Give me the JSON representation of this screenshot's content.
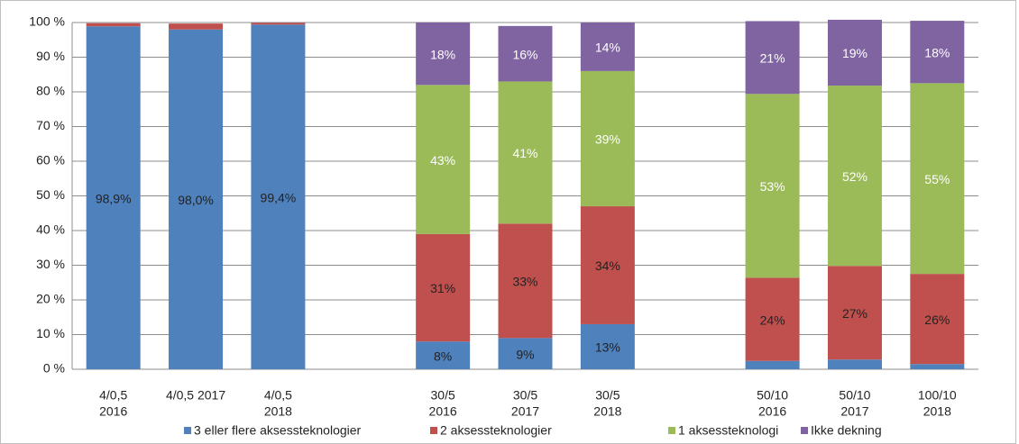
{
  "chart_data": {
    "type": "stacked_bar",
    "categories": [
      [
        "4/0,5",
        "2016"
      ],
      [
        "4/0,5   2017"
      ],
      [
        "4/0,5",
        "2018"
      ],
      null,
      [
        "30/5",
        "2016"
      ],
      [
        "30/5",
        "2017"
      ],
      [
        "30/5",
        "2018"
      ],
      null,
      [
        "50/10",
        "2016"
      ],
      [
        "50/10",
        "2017"
      ],
      [
        "100/10",
        "2018"
      ]
    ],
    "series": [
      {
        "name": "3 eller flere aksessteknologier",
        "color": "#4f81bd",
        "values": [
          98.9,
          98.0,
          99.4,
          null,
          8,
          9,
          13,
          null,
          2.4,
          2.8,
          1.5
        ],
        "value_labels": [
          "98,9%",
          "98,0%",
          "99,4%",
          null,
          "8%",
          "9%",
          "13%",
          null,
          null,
          null,
          null
        ]
      },
      {
        "name": "2 aksessteknologier",
        "color": "#c0504d",
        "values": [
          0.9,
          1.7,
          0.5,
          null,
          31,
          33,
          34,
          null,
          24,
          27,
          26
        ],
        "value_labels": [
          null,
          null,
          null,
          null,
          "31%",
          "33%",
          "34%",
          null,
          "24%",
          "27%",
          "26%"
        ]
      },
      {
        "name": "1 aksessteknologi",
        "color": "#9bbb59",
        "values": [
          null,
          null,
          null,
          null,
          43,
          41,
          39,
          null,
          53,
          52,
          55
        ],
        "value_labels": [
          null,
          null,
          null,
          null,
          "43%",
          "41%",
          "39%",
          null,
          "53%",
          "52%",
          "55%"
        ]
      },
      {
        "name": "Ikke dekning",
        "color": "#8064a2",
        "values": [
          null,
          null,
          null,
          null,
          18,
          16,
          14,
          null,
          21,
          19,
          18
        ],
        "value_labels": [
          null,
          null,
          null,
          null,
          "18%",
          "16%",
          "14%",
          null,
          "21%",
          "19%",
          "18%"
        ]
      }
    ],
    "ylim": [
      0,
      100
    ],
    "yticks": [
      {
        "value": 0,
        "label": "0 %"
      },
      {
        "value": 10,
        "label": "10 %"
      },
      {
        "value": 20,
        "label": "20 %"
      },
      {
        "value": 30,
        "label": "30 %"
      },
      {
        "value": 40,
        "label": "40 %"
      },
      {
        "value": 50,
        "label": "50 %"
      },
      {
        "value": 60,
        "label": "60 %"
      },
      {
        "value": 70,
        "label": "70 %"
      },
      {
        "value": 80,
        "label": "80 %"
      },
      {
        "value": 90,
        "label": "90 %"
      },
      {
        "value": 100,
        "label": "100 %"
      }
    ],
    "grid": true,
    "legend": "bottom"
  }
}
